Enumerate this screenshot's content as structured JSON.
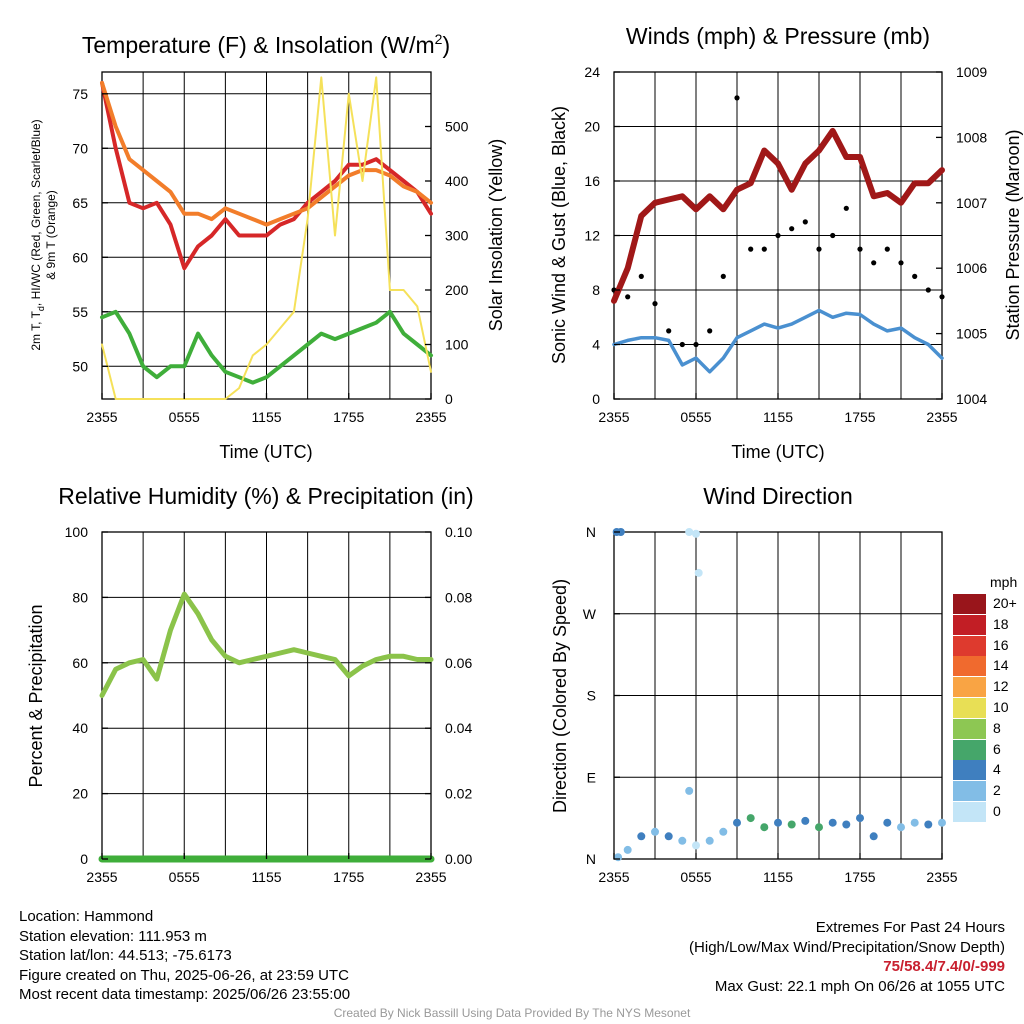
{
  "colors": {
    "temp_red": "#d62728",
    "temp_orange": "#f27d2a",
    "dewpoint_green": "#3fae3a",
    "insolation_yellow": "#f5e15a",
    "wind_blue": "#4a90d0",
    "gust_black": "#000000",
    "pressure_maroon": "#a01818",
    "rh_green": "#8bc34a",
    "precip_green": "#3fae3a",
    "extremes_red": "#c8202f",
    "credit_gray": "#999999"
  },
  "panels": {
    "temp": {
      "title_main": "Temperature (F) & Insolation (W/m",
      "title_sup": "2",
      "title_close": ")",
      "ylabel_line1": "2m T, T",
      "ylabel_sub": "d",
      "ylabel_line1_rest": ", HI/WC (Red, Green, Scarlet/Blue)",
      "ylabel_line2": "& 9m T (Orange)",
      "y2label": "Solar Insolation (Yellow)",
      "xlabel": "Time (UTC)"
    },
    "wind": {
      "title": "Winds (mph) & Pressure (mb)",
      "ylabel": "Sonic Wind & Gust (Blue, Black)",
      "y2label": "Station Pressure (Maroon)",
      "xlabel": "Time (UTC)"
    },
    "rh": {
      "title": "Relative Humidity (%) & Precipitation (in)",
      "ylabel": "Percent & Precipitation"
    },
    "dir": {
      "title": "Wind Direction",
      "ylabel": "Direction (Colored By Speed)"
    }
  },
  "legend": {
    "unit": "mph",
    "items": [
      {
        "label": "20+",
        "color": "#99151b"
      },
      {
        "label": "18",
        "color": "#c21e25"
      },
      {
        "label": "16",
        "color": "#de3a2e"
      },
      {
        "label": "14",
        "color": "#f06a2e"
      },
      {
        "label": "12",
        "color": "#f9a444"
      },
      {
        "label": "10",
        "color": "#e8df55"
      },
      {
        "label": "8",
        "color": "#8dc753"
      },
      {
        "label": "6",
        "color": "#45a66a"
      },
      {
        "label": "4",
        "color": "#3f7fbf"
      },
      {
        "label": "2",
        "color": "#82bde6"
      },
      {
        "label": "0",
        "color": "#c3e5f7"
      }
    ]
  },
  "footer": {
    "location": "Location: Hammond",
    "elevation": "Station elevation: 111.953 m",
    "latlon": "Station lat/lon: 44.513; -75.6173",
    "created": "Figure created on Thu, 2025-06-26, at 23:59 UTC",
    "recent": "Most recent data timestamp: 2025/06/26 23:55:00",
    "extremes_title": "Extremes For Past 24 Hours",
    "extremes_desc": "(High/Low/Max Wind/Precipitation/Snow Depth)",
    "extremes_values": "75/58.4/7.4/0/-999",
    "max_gust": "Max Gust: 22.1 mph On 06/26 at 1055 UTC",
    "credit": "Created By Nick Bassill Using Data Provided By The NYS Mesonet"
  },
  "chart_data": [
    {
      "id": "temp",
      "type": "line",
      "title": "Temperature (F) & Insolation (W/m2)",
      "xlabel": "Time (UTC)",
      "ylabel": "2m T, Td, HI/WC (Red, Green, Scarlet/Blue) & 9m T (Orange)",
      "y2label": "Solar Insolation (Yellow)",
      "xticks": [
        "2355",
        "0555",
        "1155",
        "1755",
        "2355"
      ],
      "x": [
        0,
        1,
        2,
        3,
        4,
        5,
        6,
        7,
        8,
        9,
        10,
        11,
        12,
        13,
        14,
        15,
        16,
        17,
        18,
        19,
        20,
        21,
        22,
        23,
        24
      ],
      "ylim": [
        47,
        77
      ],
      "yticks": [
        50,
        55,
        60,
        65,
        70,
        75
      ],
      "y2lim": [
        0,
        600
      ],
      "y2ticks": [
        0,
        100,
        200,
        300,
        400,
        500
      ],
      "grid": true,
      "series": [
        {
          "key": "t2m",
          "color": "#d62728",
          "axis": "left",
          "values": [
            76,
            70,
            65,
            64.5,
            65,
            63,
            59,
            61,
            62,
            63.5,
            62,
            62,
            62,
            63,
            63.5,
            65,
            66,
            67,
            68.5,
            68.5,
            69,
            68,
            67,
            66,
            64
          ]
        },
        {
          "key": "t9m",
          "color": "#f27d2a",
          "axis": "left",
          "values": [
            76,
            72,
            69,
            68,
            67,
            66,
            64,
            64,
            63.5,
            64.5,
            64,
            63.5,
            63,
            63.5,
            64,
            64.5,
            65.5,
            66.5,
            67.5,
            68,
            68,
            67.5,
            66.5,
            66,
            65
          ]
        },
        {
          "key": "td",
          "color": "#3fae3a",
          "axis": "left",
          "values": [
            54.5,
            55,
            53,
            50,
            49,
            50,
            50,
            53,
            51,
            49.5,
            49,
            48.5,
            49,
            50,
            51,
            52,
            53,
            52.5,
            53,
            53.5,
            54,
            55,
            53,
            52,
            51
          ]
        },
        {
          "key": "insolation",
          "color": "#f5e15a",
          "axis": "right",
          "values": [
            100,
            0,
            0,
            0,
            0,
            0,
            0,
            0,
            0,
            0,
            20,
            80,
            100,
            130,
            160,
            330,
            590,
            300,
            560,
            400,
            590,
            200,
            200,
            170,
            50
          ]
        }
      ]
    },
    {
      "id": "wind",
      "type": "line",
      "title": "Winds (mph) & Pressure (mb)",
      "xlabel": "Time (UTC)",
      "ylabel": "Sonic Wind & Gust (Blue, Black)",
      "y2label": "Station Pressure (Maroon)",
      "xticks": [
        "2355",
        "0555",
        "1155",
        "1755",
        "2355"
      ],
      "x": [
        0,
        1,
        2,
        3,
        4,
        5,
        6,
        7,
        8,
        9,
        10,
        11,
        12,
        13,
        14,
        15,
        16,
        17,
        18,
        19,
        20,
        21,
        22,
        23,
        24
      ],
      "ylim": [
        0,
        24
      ],
      "yticks": [
        0,
        4,
        8,
        12,
        16,
        20,
        24
      ],
      "y2lim": [
        1004,
        1009
      ],
      "y2ticks": [
        1004,
        1005,
        1006,
        1007,
        1008,
        1009
      ],
      "grid": true,
      "series": [
        {
          "key": "wind",
          "color": "#4a90d0",
          "axis": "left",
          "values": [
            4,
            4.3,
            4.5,
            4.5,
            4.3,
            2.5,
            3,
            2,
            3,
            4.5,
            5,
            5.5,
            5.2,
            5.5,
            6,
            6.5,
            6,
            6.3,
            6.2,
            5.5,
            5,
            5.2,
            4.5,
            4,
            3
          ]
        },
        {
          "key": "gust",
          "color": "#000000",
          "axis": "left",
          "style": "scatter",
          "values": [
            8,
            7.5,
            9,
            7,
            5,
            4,
            4,
            5,
            9,
            22.1,
            11,
            11,
            12,
            12.5,
            13,
            11,
            12,
            14,
            11,
            10,
            11,
            10,
            9,
            8,
            7.5
          ]
        },
        {
          "key": "pressure",
          "color": "#a01818",
          "axis": "right",
          "values": [
            1005.5,
            1006,
            1006.8,
            1007,
            1007.05,
            1007.1,
            1006.9,
            1007.1,
            1006.9,
            1007.2,
            1007.3,
            1007.8,
            1007.6,
            1007.2,
            1007.6,
            1007.8,
            1008.1,
            1007.7,
            1007.7,
            1007.1,
            1007.15,
            1007,
            1007.3,
            1007.3,
            1007.5
          ]
        }
      ]
    },
    {
      "id": "rh",
      "type": "line",
      "title": "Relative Humidity (%) & Precipitation (in)",
      "xlabel": "",
      "ylabel": "Percent & Precipitation",
      "xticks": [
        "2355",
        "0555",
        "1155",
        "1755",
        "2355"
      ],
      "x": [
        0,
        1,
        2,
        3,
        4,
        5,
        6,
        7,
        8,
        9,
        10,
        11,
        12,
        13,
        14,
        15,
        16,
        17,
        18,
        19,
        20,
        21,
        22,
        23,
        24
      ],
      "ylim": [
        0,
        100
      ],
      "yticks": [
        0,
        20,
        40,
        60,
        80,
        100
      ],
      "y2lim": [
        0,
        0.1
      ],
      "y2ticks": [
        "0.00",
        "0.02",
        "0.04",
        "0.06",
        "0.08",
        "0.10"
      ],
      "grid": true,
      "series": [
        {
          "key": "rh",
          "color": "#8bc34a",
          "axis": "left",
          "values": [
            50,
            58,
            60,
            61,
            55,
            70,
            81,
            75,
            67,
            62,
            60,
            61,
            62,
            63,
            64,
            63,
            62,
            61,
            56,
            59,
            61,
            62,
            62,
            61,
            61
          ]
        },
        {
          "key": "precip",
          "color": "#3fae3a",
          "axis": "right",
          "values": [
            0,
            0,
            0,
            0,
            0,
            0,
            0,
            0,
            0,
            0,
            0,
            0,
            0,
            0,
            0,
            0,
            0,
            0,
            0,
            0,
            0,
            0,
            0,
            0,
            0
          ]
        }
      ]
    },
    {
      "id": "dir",
      "type": "scatter",
      "title": "Wind Direction",
      "xlabel": "",
      "ylabel": "Direction (Colored By Speed)",
      "xticks": [
        "2355",
        "0555",
        "1155",
        "1755",
        "2355"
      ],
      "yticks": [
        "N",
        "E",
        "S",
        "W",
        "N"
      ],
      "ylim": [
        0,
        360
      ],
      "grid": true,
      "points": [
        {
          "x": 0.2,
          "y": 360,
          "speed": 4
        },
        {
          "x": 0.5,
          "y": 360,
          "speed": 4
        },
        {
          "x": 0.3,
          "y": 2,
          "speed": 2
        },
        {
          "x": 1,
          "y": 10,
          "speed": 3
        },
        {
          "x": 2,
          "y": 25,
          "speed": 4
        },
        {
          "x": 3,
          "y": 30,
          "speed": 3
        },
        {
          "x": 4,
          "y": 25,
          "speed": 4
        },
        {
          "x": 5,
          "y": 20,
          "speed": 2
        },
        {
          "x": 5.5,
          "y": 75,
          "speed": 2
        },
        {
          "x": 5.5,
          "y": 360,
          "speed": 1
        },
        {
          "x": 6,
          "y": 358,
          "speed": 1
        },
        {
          "x": 6.2,
          "y": 315,
          "speed": 1
        },
        {
          "x": 6,
          "y": 15,
          "speed": 1
        },
        {
          "x": 7,
          "y": 20,
          "speed": 2
        },
        {
          "x": 8,
          "y": 30,
          "speed": 3
        },
        {
          "x": 9,
          "y": 40,
          "speed": 5
        },
        {
          "x": 10,
          "y": 45,
          "speed": 6
        },
        {
          "x": 11,
          "y": 35,
          "speed": 6
        },
        {
          "x": 12,
          "y": 40,
          "speed": 5
        },
        {
          "x": 13,
          "y": 38,
          "speed": 6
        },
        {
          "x": 14,
          "y": 42,
          "speed": 4
        },
        {
          "x": 15,
          "y": 35,
          "speed": 6
        },
        {
          "x": 16,
          "y": 40,
          "speed": 5
        },
        {
          "x": 17,
          "y": 38,
          "speed": 4
        },
        {
          "x": 18,
          "y": 45,
          "speed": 4
        },
        {
          "x": 19,
          "y": 25,
          "speed": 5
        },
        {
          "x": 20,
          "y": 40,
          "speed": 4
        },
        {
          "x": 21,
          "y": 35,
          "speed": 2
        },
        {
          "x": 22,
          "y": 40,
          "speed": 3
        },
        {
          "x": 23,
          "y": 38,
          "speed": 4
        },
        {
          "x": 24,
          "y": 40,
          "speed": 3
        }
      ]
    }
  ]
}
